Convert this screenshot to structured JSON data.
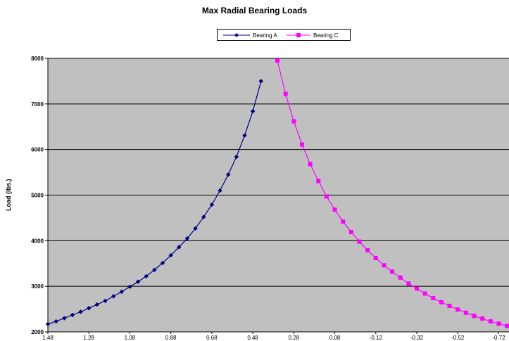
{
  "chart_data": {
    "type": "line",
    "title": "Max Radial Bearing Loads",
    "xlabel": "",
    "ylabel": "Load (lbs.)",
    "x_reversed": true,
    "xlim": [
      1.48,
      -0.77
    ],
    "ylim": [
      2000,
      8000
    ],
    "yticks": [
      2000,
      3000,
      4000,
      5000,
      6000,
      7000,
      8000
    ],
    "xticks": [
      1.48,
      1.28,
      1.08,
      0.88,
      0.68,
      0.48,
      0.28,
      0.08,
      -0.12,
      -0.32,
      -0.52,
      -0.72
    ],
    "xtick_labels": [
      "1.48",
      "1.28",
      "1.08",
      "0.88",
      "0.68",
      "0.48",
      "0.28",
      "0.08",
      "-0.12",
      "-0.32",
      "-0.52",
      "-0.72"
    ],
    "grid": "horizontal",
    "plot_background": "#c0c0c0",
    "legend_position": "top-center",
    "series": [
      {
        "name": "Bearing A",
        "color": "#000080",
        "marker": "diamond",
        "x": [
          1.48,
          1.44,
          1.4,
          1.36,
          1.32,
          1.28,
          1.24,
          1.2,
          1.16,
          1.12,
          1.08,
          1.04,
          1.0,
          0.96,
          0.92,
          0.88,
          0.84,
          0.8,
          0.76,
          0.72,
          0.68,
          0.64,
          0.6,
          0.56,
          0.52,
          0.48,
          0.44,
          0.4,
          0.36,
          0.32,
          0.28,
          0.24,
          0.2,
          0.16
        ],
        "values": [
          2170,
          2230,
          2300,
          2370,
          2440,
          2520,
          2600,
          2680,
          2780,
          2880,
          2990,
          3100,
          3220,
          3360,
          3510,
          3680,
          3860,
          4050,
          4270,
          4520,
          4790,
          5100,
          5450,
          5840,
          6310,
          6840,
          7500,
          null,
          null,
          null,
          null,
          null,
          null,
          null
        ]
      },
      {
        "name": "Bearing C",
        "color": "#ff00ff",
        "marker": "square",
        "x": [
          0.36,
          0.32,
          0.28,
          0.24,
          0.2,
          0.16,
          0.12,
          0.08,
          0.04,
          0.0,
          -0.04,
          -0.08,
          -0.12,
          -0.16,
          -0.2,
          -0.24,
          -0.28,
          -0.32,
          -0.36,
          -0.4,
          -0.44,
          -0.48,
          -0.52,
          -0.56,
          -0.6,
          -0.64,
          -0.68,
          -0.72,
          -0.76
        ],
        "values": [
          7950,
          7220,
          6620,
          6110,
          5680,
          5310,
          4970,
          4680,
          4420,
          4190,
          3980,
          3790,
          3620,
          3460,
          3320,
          3190,
          3060,
          2950,
          2840,
          2740,
          2650,
          2570,
          2490,
          2420,
          2350,
          2290,
          2230,
          2180,
          2130
        ]
      }
    ]
  }
}
